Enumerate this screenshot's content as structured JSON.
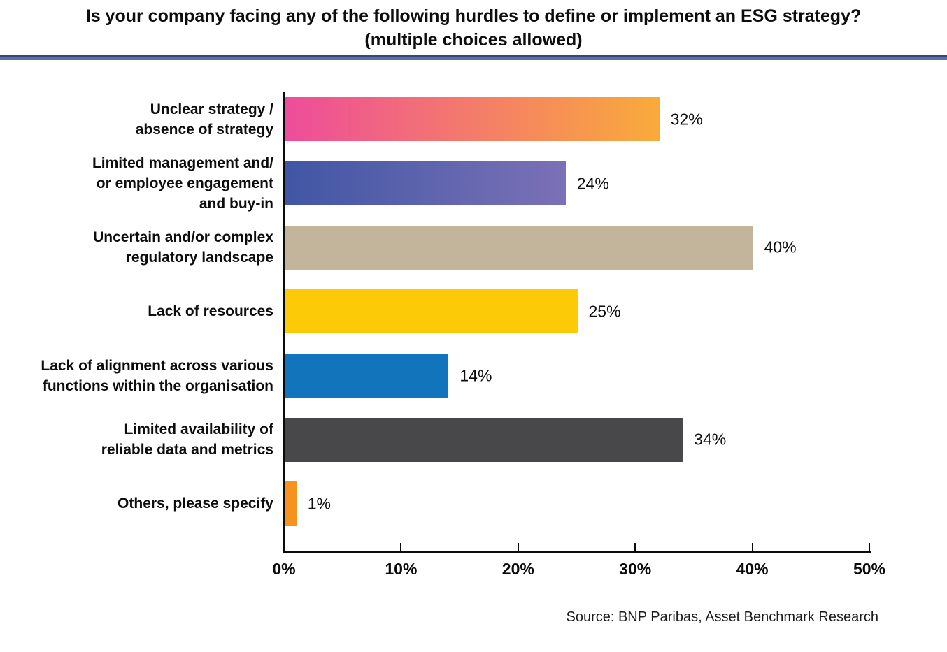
{
  "title": {
    "line1": "Is your company facing any of the following hurdles to define or implement an ESG strategy?",
    "line2": "(multiple choices allowed)"
  },
  "source": "Source: BNP Paribas, Asset Benchmark Research",
  "colors": {
    "divider": "#5d6f9e",
    "divider_edge": "#34487a",
    "axis": "#0a0a0a",
    "title_text": "#0d0d0d"
  },
  "chart_data": {
    "type": "bar",
    "orientation": "horizontal",
    "title": "Is your company facing any of the following hurdles to define or implement an ESG strategy?",
    "subtitle": "(multiple choices allowed)",
    "xlabel": "",
    "ylabel": "",
    "xlim": [
      0,
      50
    ],
    "x_ticks": [
      "0%",
      "10%",
      "20%",
      "30%",
      "40%",
      "50%"
    ],
    "grid": false,
    "legend": false,
    "source": "Source: BNP Paribas, Asset Benchmark Research",
    "categories": [
      "Unclear strategy / absence of strategy",
      "Limited management and/ or employee engagement and buy-in",
      "Uncertain and/or complex regulatory landscape",
      "Lack of resources",
      "Lack of alignment across various functions within the organisation",
      "Limited availability of reliable data and metrics",
      "Others, please specify"
    ],
    "category_lines": [
      [
        "Unclear strategy /",
        "absence of strategy"
      ],
      [
        "Limited management and/",
        "or employee engagement",
        "and buy-in"
      ],
      [
        "Uncertain and/or complex",
        "regulatory landscape"
      ],
      [
        "Lack of resources"
      ],
      [
        "Lack of alignment across various",
        "functions within the organisation"
      ],
      [
        "Limited availability of",
        "reliable data and metrics"
      ],
      [
        "Others, please specify"
      ]
    ],
    "values": [
      32,
      24,
      40,
      25,
      14,
      34,
      1
    ],
    "value_labels": [
      "32%",
      "24%",
      "40%",
      "25%",
      "14%",
      "34%",
      "1%"
    ],
    "bar_colors": [
      {
        "start": "#ee4c9b",
        "end": "#f9ab3a"
      },
      {
        "start": "#4056a4",
        "end": "#7b71b7"
      },
      {
        "start": "#c3b49c",
        "end": "#c3b49c"
      },
      {
        "start": "#fdca08",
        "end": "#fdca08"
      },
      {
        "start": "#1274bb",
        "end": "#1274bb"
      },
      {
        "start": "#48474a",
        "end": "#48474a"
      },
      {
        "start": "#f6921e",
        "end": "#f6921e"
      }
    ]
  }
}
